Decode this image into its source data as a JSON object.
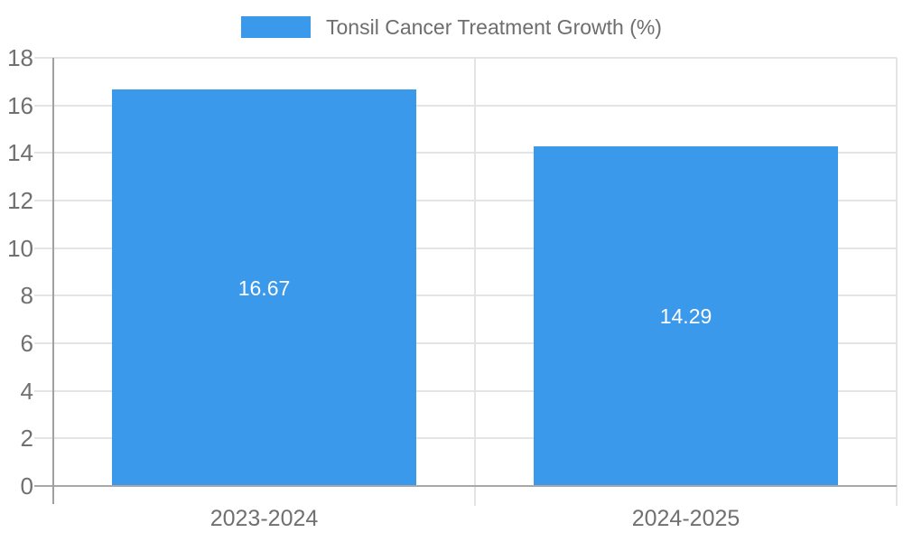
{
  "legend": {
    "label": "Tonsil Cancer Treatment Growth (%)"
  },
  "chart_data": {
    "type": "bar",
    "title": "",
    "xlabel": "",
    "ylabel": "",
    "categories": [
      "2023-2024",
      "2024-2025"
    ],
    "series": [
      {
        "name": "Tonsil Cancer Treatment Growth (%)",
        "values": [
          16.67,
          14.29
        ]
      }
    ],
    "value_labels": [
      "16.67",
      "14.29"
    ],
    "ylim": [
      0,
      18
    ],
    "yticks": [
      0,
      2,
      4,
      6,
      8,
      10,
      12,
      14,
      16,
      18
    ],
    "grid": true,
    "legend_position": "top-center",
    "colors": {
      "bar": "#3b99ec",
      "gridline": "#e4e4e4",
      "axis_line": "#a0a0a0",
      "axis_text": "#707070",
      "legend_text": "#6e6e6e",
      "value_label_text": "#ffffff",
      "background": "#ffffff"
    }
  }
}
